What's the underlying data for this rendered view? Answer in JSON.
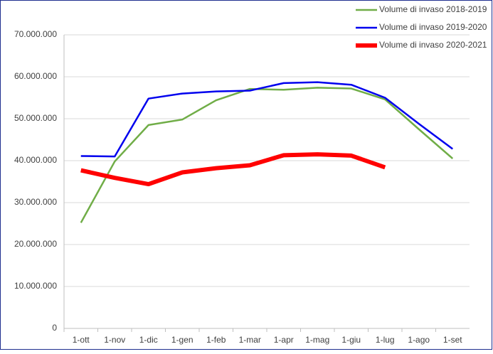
{
  "chart_data": {
    "type": "line",
    "categories": [
      "1-ott",
      "1-nov",
      "1-dic",
      "1-gen",
      "1-feb",
      "1-mar",
      "1-apr",
      "1-mag",
      "1-giu",
      "1-lug",
      "1-ago",
      "1-set"
    ],
    "series": [
      {
        "name": "Volume di invaso 2018-2019",
        "color": "#70ad47",
        "width": 2.5,
        "values": [
          25200000,
          39800000,
          48500000,
          49800000,
          54400000,
          57100000,
          56900000,
          57400000,
          57200000,
          54600000,
          47500000,
          40500000
        ]
      },
      {
        "name": "Volume di invaso 2019-2020",
        "color": "#0000ee",
        "width": 2.5,
        "values": [
          41100000,
          41000000,
          54800000,
          56000000,
          56500000,
          56700000,
          58500000,
          58700000,
          58100000,
          55000000,
          48800000,
          42800000
        ]
      },
      {
        "name": "Volume di invaso 2020-2021",
        "color": "#ff0000",
        "width": 6,
        "values": [
          37700000,
          35900000,
          34400000,
          37200000,
          38200000,
          38900000,
          41300000,
          41500000,
          41200000,
          38400000,
          null,
          null
        ]
      }
    ],
    "ylim": [
      0,
      70000000
    ],
    "yticks": [
      0,
      {
        "value": 10000000,
        "label": "10.000.000"
      },
      {
        "value": 20000000,
        "label": "20.000.000"
      },
      {
        "value": 30000000,
        "label": "30.000.000"
      },
      {
        "value": 40000000,
        "label": "40.000.000"
      },
      {
        "value": 50000000,
        "label": "50.000.000"
      },
      {
        "value": 60000000,
        "label": "60.000.000"
      },
      {
        "value": 70000000,
        "label": "70.000.000"
      }
    ],
    "grid": true,
    "legend": "top-right"
  }
}
